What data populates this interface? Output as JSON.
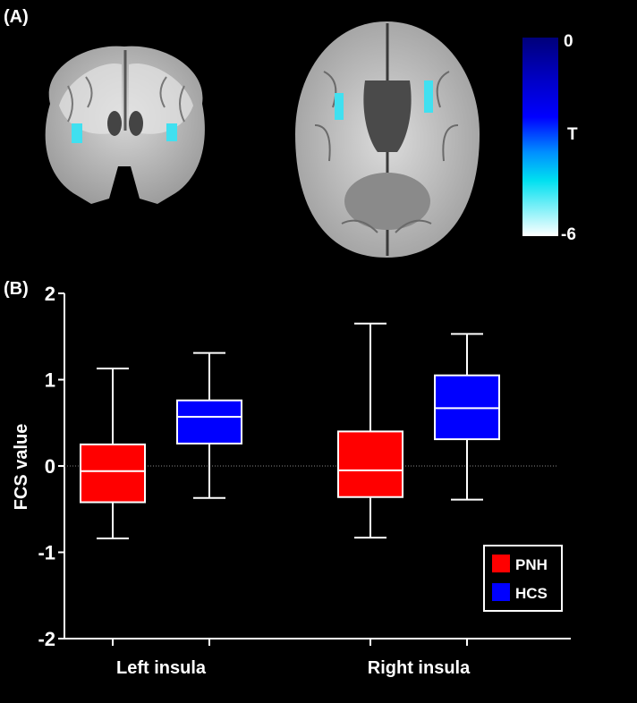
{
  "panel_labels": {
    "a": "(A)",
    "b": "(B)"
  },
  "colorbar": {
    "max_label": "0",
    "title": "T",
    "min_label": "-6"
  },
  "colors": {
    "pnh": "#ff0000",
    "hcs": "#0000ff",
    "activation": "#40e0f0"
  },
  "chart_data": {
    "type": "box",
    "ylabel": "FCS value",
    "ylim": [
      -2,
      2
    ],
    "yticks": [
      "-2",
      "-1",
      "0",
      "1",
      "2"
    ],
    "reference_line": 0,
    "categories": [
      "Left insula",
      "Right insula"
    ],
    "series": [
      {
        "name": "PNH",
        "color": "#ff0000",
        "boxes": [
          {
            "min": -0.84,
            "q1": -0.42,
            "median": -0.06,
            "q3": 0.25,
            "max": 1.13
          },
          {
            "min": -0.83,
            "q1": -0.36,
            "median": -0.05,
            "q3": 0.4,
            "max": 1.65
          }
        ]
      },
      {
        "name": "HCS",
        "color": "#0000ff",
        "boxes": [
          {
            "min": -0.37,
            "q1": 0.26,
            "median": 0.57,
            "q3": 0.76,
            "max": 1.31
          },
          {
            "min": -0.39,
            "q1": 0.31,
            "median": 0.67,
            "q3": 1.05,
            "max": 1.53
          }
        ]
      }
    ],
    "legend": {
      "position": "bottom-right",
      "entries": [
        "PNH",
        "HCS"
      ]
    },
    "grid": false
  }
}
